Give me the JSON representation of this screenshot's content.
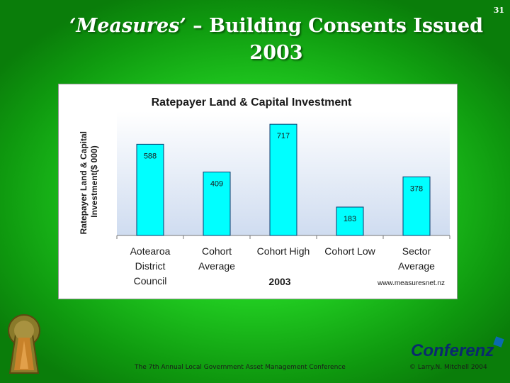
{
  "slide": {
    "number": "31",
    "title_part1": "‘Measures’",
    "title_dash": "–",
    "title_part2": "Building Consents Issued",
    "title_line2": "2003"
  },
  "chart_data": {
    "type": "bar",
    "title": "Ratepayer Land & Capital Investment",
    "ylabel_line1": "Ratepayer Land & Capital",
    "ylabel_line2": "Investment($ 000)",
    "xlabel": "2003",
    "source_note": "www.measuresnet.nz",
    "categories": [
      [
        "Aotearoa",
        "District",
        "Council"
      ],
      [
        "Cohort",
        "Average"
      ],
      [
        "Cohort High"
      ],
      [
        "Cohort Low"
      ],
      [
        "Sector",
        "Average"
      ]
    ],
    "values": [
      588,
      409,
      717,
      183,
      378
    ],
    "ylim": [
      0,
      800
    ],
    "bar_color": "#00ffff",
    "plot_background": "#e3ecf8"
  },
  "footer": {
    "conference": "The 7th Annual Local Government Asset Management Conference",
    "copyright": "© Larry.N. Mitchell 2004",
    "brand": "Conferenz"
  },
  "colors": {
    "background": "#21cc21",
    "title": "#ffffff",
    "bar_edge": "#0a3a6e"
  }
}
